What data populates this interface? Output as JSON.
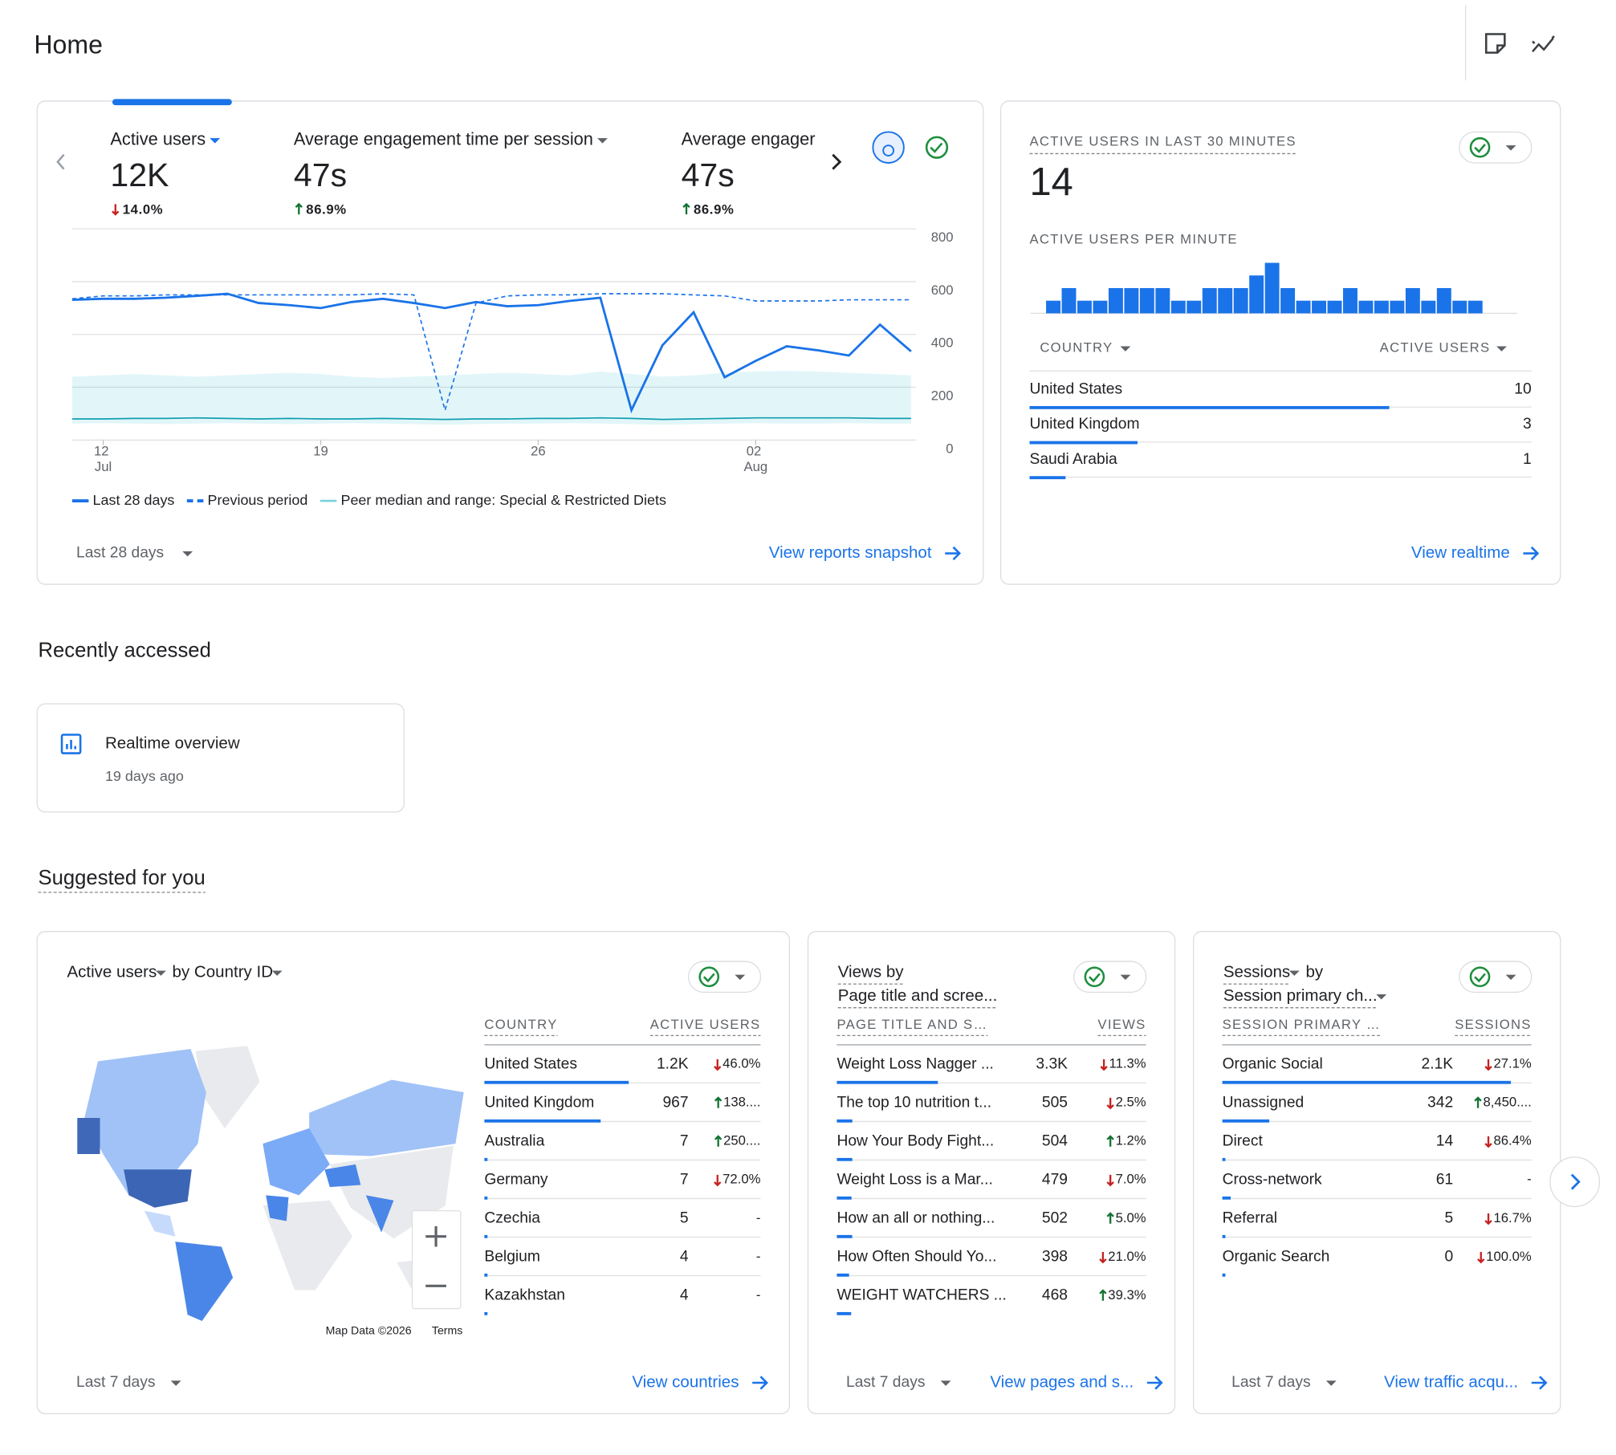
{
  "header": {
    "title": "Home"
  },
  "overview": {
    "metrics": [
      {
        "label": "Active users",
        "value": "12K",
        "change": "14.0%",
        "trend": "down"
      },
      {
        "label": "Average engagement time per session",
        "value": "47s",
        "change": "86.9%",
        "trend": "up"
      },
      {
        "label": "Average engager",
        "value": "47s",
        "change": "86.9%",
        "trend": "up"
      }
    ],
    "chart_data": {
      "type": "line",
      "categories": [
        null,
        "12 Jul",
        null,
        null,
        null,
        null,
        null,
        null,
        "19",
        null,
        null,
        null,
        null,
        null,
        null,
        "26",
        null,
        null,
        null,
        null,
        null,
        null,
        "02 Aug",
        null,
        null,
        null,
        null,
        null
      ],
      "ylim": [
        0,
        800
      ],
      "yticks": [
        0,
        200,
        400,
        600,
        800
      ],
      "grid": true,
      "series": [
        {
          "name": "Last 28 days",
          "color": "#1a73e8",
          "style": "solid",
          "values": [
            531,
            535,
            535,
            539,
            546,
            554,
            519,
            511,
            500,
            523,
            535,
            519,
            500,
            523,
            507,
            511,
            527,
            539,
            113,
            359,
            484,
            238,
            300,
            355,
            340,
            320,
            437,
            336
          ]
        },
        {
          "name": "Previous period",
          "color": "#1a73e8",
          "style": "dashed",
          "values": [
            535,
            546,
            546,
            550,
            550,
            550,
            550,
            550,
            550,
            550,
            554,
            550,
            113,
            519,
            546,
            550,
            550,
            554,
            554,
            554,
            550,
            546,
            527,
            527,
            527,
            531,
            531,
            531
          ]
        },
        {
          "name": "Peer median and range: Special & Restricted Diets",
          "color": "#12b5cb",
          "style": "band",
          "values": [
            80,
            80,
            82,
            82,
            84,
            82,
            80,
            82,
            80,
            80,
            82,
            80,
            78,
            80,
            80,
            82,
            82,
            84,
            82,
            78,
            80,
            82,
            84,
            84,
            84,
            84,
            82,
            82
          ],
          "range_low": [
            62,
            64,
            62,
            60,
            62,
            64,
            62,
            60,
            62,
            64,
            62,
            60,
            58,
            60,
            62,
            62,
            64,
            62,
            60,
            58,
            60,
            62,
            64,
            62,
            62,
            64,
            62,
            62
          ],
          "range_high": [
            240,
            245,
            250,
            245,
            240,
            245,
            250,
            255,
            250,
            240,
            235,
            240,
            245,
            250,
            255,
            250,
            245,
            260,
            250,
            240,
            245,
            255,
            260,
            262,
            260,
            255,
            250,
            245
          ]
        }
      ]
    },
    "period": "Last 28 days",
    "link": "View reports snapshot"
  },
  "realtime": {
    "title": "ACTIVE USERS IN LAST 30 MINUTES",
    "total": 14,
    "subtitle": "ACTIVE USERS PER MINUTE",
    "chart_data": {
      "type": "bar",
      "color": "#1a73e8",
      "values": [
        1,
        2,
        1,
        1,
        2,
        2,
        2,
        2,
        1,
        1,
        2,
        2,
        2,
        3,
        4,
        2,
        1,
        1,
        1,
        2,
        1,
        1,
        1,
        2,
        1,
        2,
        1,
        1,
        0,
        0
      ]
    },
    "table": {
      "columns": [
        "COUNTRY",
        "ACTIVE USERS"
      ],
      "rows": [
        {
          "name": "United States",
          "value": 10
        },
        {
          "name": "United Kingdom",
          "value": 3
        },
        {
          "name": "Saudi Arabia",
          "value": 1
        }
      ]
    },
    "link": "View realtime"
  },
  "recent": {
    "title": "Recently accessed",
    "items": [
      {
        "label": "Realtime overview",
        "time": "19 days ago"
      }
    ]
  },
  "suggested": {
    "title": "Suggested for you",
    "cards": [
      {
        "title": [
          [
            {
              "text": "Active users",
              "dropdown": true
            },
            {
              "text": "by Country ID",
              "dropdown": true
            }
          ]
        ],
        "columns": [
          "COUNTRY",
          "ACTIVE USERS"
        ],
        "rows": [
          {
            "name": "United States",
            "value": {
              "value": 1200,
              "label": "1.2K"
            },
            "change": "46.0%",
            "trend": "down"
          },
          {
            "name": "United Kingdom",
            "value": 967,
            "change": "138....",
            "trend": "up"
          },
          {
            "name": "Australia",
            "value": 7,
            "change": "250....",
            "trend": "up"
          },
          {
            "name": "Germany",
            "value": 7,
            "change": "72.0%",
            "trend": "down"
          },
          {
            "name": "Czechia",
            "value": 5,
            "change": "-"
          },
          {
            "name": "Belgium",
            "value": 4,
            "change": "-"
          },
          {
            "name": "Kazakhstan",
            "value": 4,
            "change": "-"
          }
        ],
        "map_credit": "Map Data ©2026",
        "map_terms": "Terms",
        "period": "Last 7 days",
        "link": "View countries"
      },
      {
        "title": [
          [
            {
              "text": "Views by",
              "dropdown": false
            }
          ],
          [
            {
              "text": "Page title and scree...",
              "dropdown": false
            }
          ]
        ],
        "columns": [
          "PAGE TITLE AND S…",
          "VIEWS"
        ],
        "rows": [
          {
            "name": "Weight Loss Nagger ...",
            "value": {
              "value": 3300,
              "label": "3.3K"
            },
            "change": "11.3%",
            "trend": "down"
          },
          {
            "name": "The top 10 nutrition t...",
            "value": 505,
            "change": "2.5%",
            "trend": "down"
          },
          {
            "name": "How Your Body Fight...",
            "value": 504,
            "change": "1.2%",
            "trend": "up"
          },
          {
            "name": "Weight Loss is a Mar...",
            "value": 479,
            "change": "7.0%",
            "trend": "down"
          },
          {
            "name": "How an all or nothing...",
            "value": 502,
            "change": "5.0%",
            "trend": "up"
          },
          {
            "name": "How Often Should Yo...",
            "value": 398,
            "change": "21.0%",
            "trend": "down"
          },
          {
            "name": "WEIGHT WATCHERS ...",
            "value": 468,
            "change": "39.3%",
            "trend": "up"
          }
        ],
        "period": "Last 7 days",
        "link": "View pages and s..."
      },
      {
        "title": [
          [
            {
              "text": "Sessions",
              "dropdown": true
            },
            {
              "text": "by",
              "dropdown": false
            }
          ],
          [
            {
              "text": "Session primary ch...",
              "dropdown": true
            }
          ]
        ],
        "columns": [
          "SESSION PRIMARY …",
          "SESSIONS"
        ],
        "rows": [
          {
            "name": "Organic Social",
            "value": {
              "value": 2100,
              "label": "2.1K"
            },
            "change": "27.1%",
            "trend": "down"
          },
          {
            "name": "Unassigned",
            "value": 342,
            "change": "8,450....",
            "trend": "up"
          },
          {
            "name": "Direct",
            "value": 14,
            "change": "86.4%",
            "trend": "down"
          },
          {
            "name": "Cross-network",
            "value": 61,
            "change": "-"
          },
          {
            "name": "Referral",
            "value": 5,
            "change": "16.7%",
            "trend": "down"
          },
          {
            "name": "Organic Search",
            "value": 0,
            "change": "100.0%",
            "trend": "down"
          }
        ],
        "period": "Last 7 days",
        "link": "View traffic acqu..."
      }
    ]
  }
}
